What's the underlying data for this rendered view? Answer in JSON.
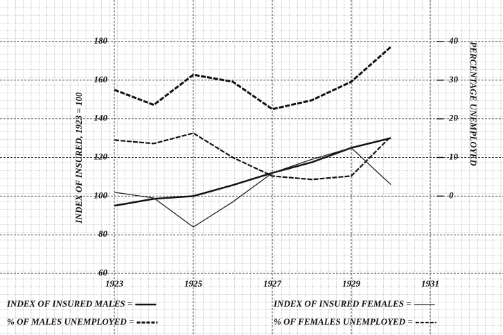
{
  "chart_data": {
    "type": "line",
    "ylabel": "INDEX OF INSURED, 1923 = 100",
    "y2label": "PERCENTAGE UNEMPLOYED",
    "x": [
      1923,
      1924,
      1925,
      1926,
      1927,
      1928,
      1929,
      1930
    ],
    "xlim": [
      1923,
      1931
    ],
    "xticks": [
      1923,
      1925,
      1927,
      1929,
      1931
    ],
    "ylim": [
      60,
      180
    ],
    "yticks": [
      60,
      80,
      100,
      120,
      140,
      160,
      180
    ],
    "y2lim": [
      -20,
      40
    ],
    "y2ticks": [
      0,
      10,
      20,
      30,
      40
    ],
    "grid": true,
    "series": [
      {
        "name": "INDEX OF INSURED MALES =",
        "color": "#111111",
        "style": "solid",
        "width": 2.5,
        "values": [
          95,
          98.6,
          100,
          105.7,
          112,
          117.5,
          125,
          130
        ]
      },
      {
        "name": "INDEX OF INSURED FEMALES =",
        "color": "#222222",
        "style": "solid",
        "width": 1.3,
        "values": [
          102,
          99,
          84,
          97,
          112,
          119,
          125,
          106
        ]
      },
      {
        "name": "% OF MALES UNEMPLOYED =",
        "color": "#111111",
        "style": "dashed",
        "width": 3,
        "axis": "y2",
        "values": [
          27.5,
          23.6,
          31.4,
          29.6,
          22.5,
          24.8,
          29.6,
          38.6
        ]
      },
      {
        "name": "% OF FEMALES UNEMPLOYED =",
        "color": "#111111",
        "style": "dashed",
        "width": 2.2,
        "axis": "y2",
        "values": [
          14.5,
          13.6,
          16.3,
          10,
          5.2,
          4.3,
          5.2,
          15.4
        ]
      }
    ]
  }
}
